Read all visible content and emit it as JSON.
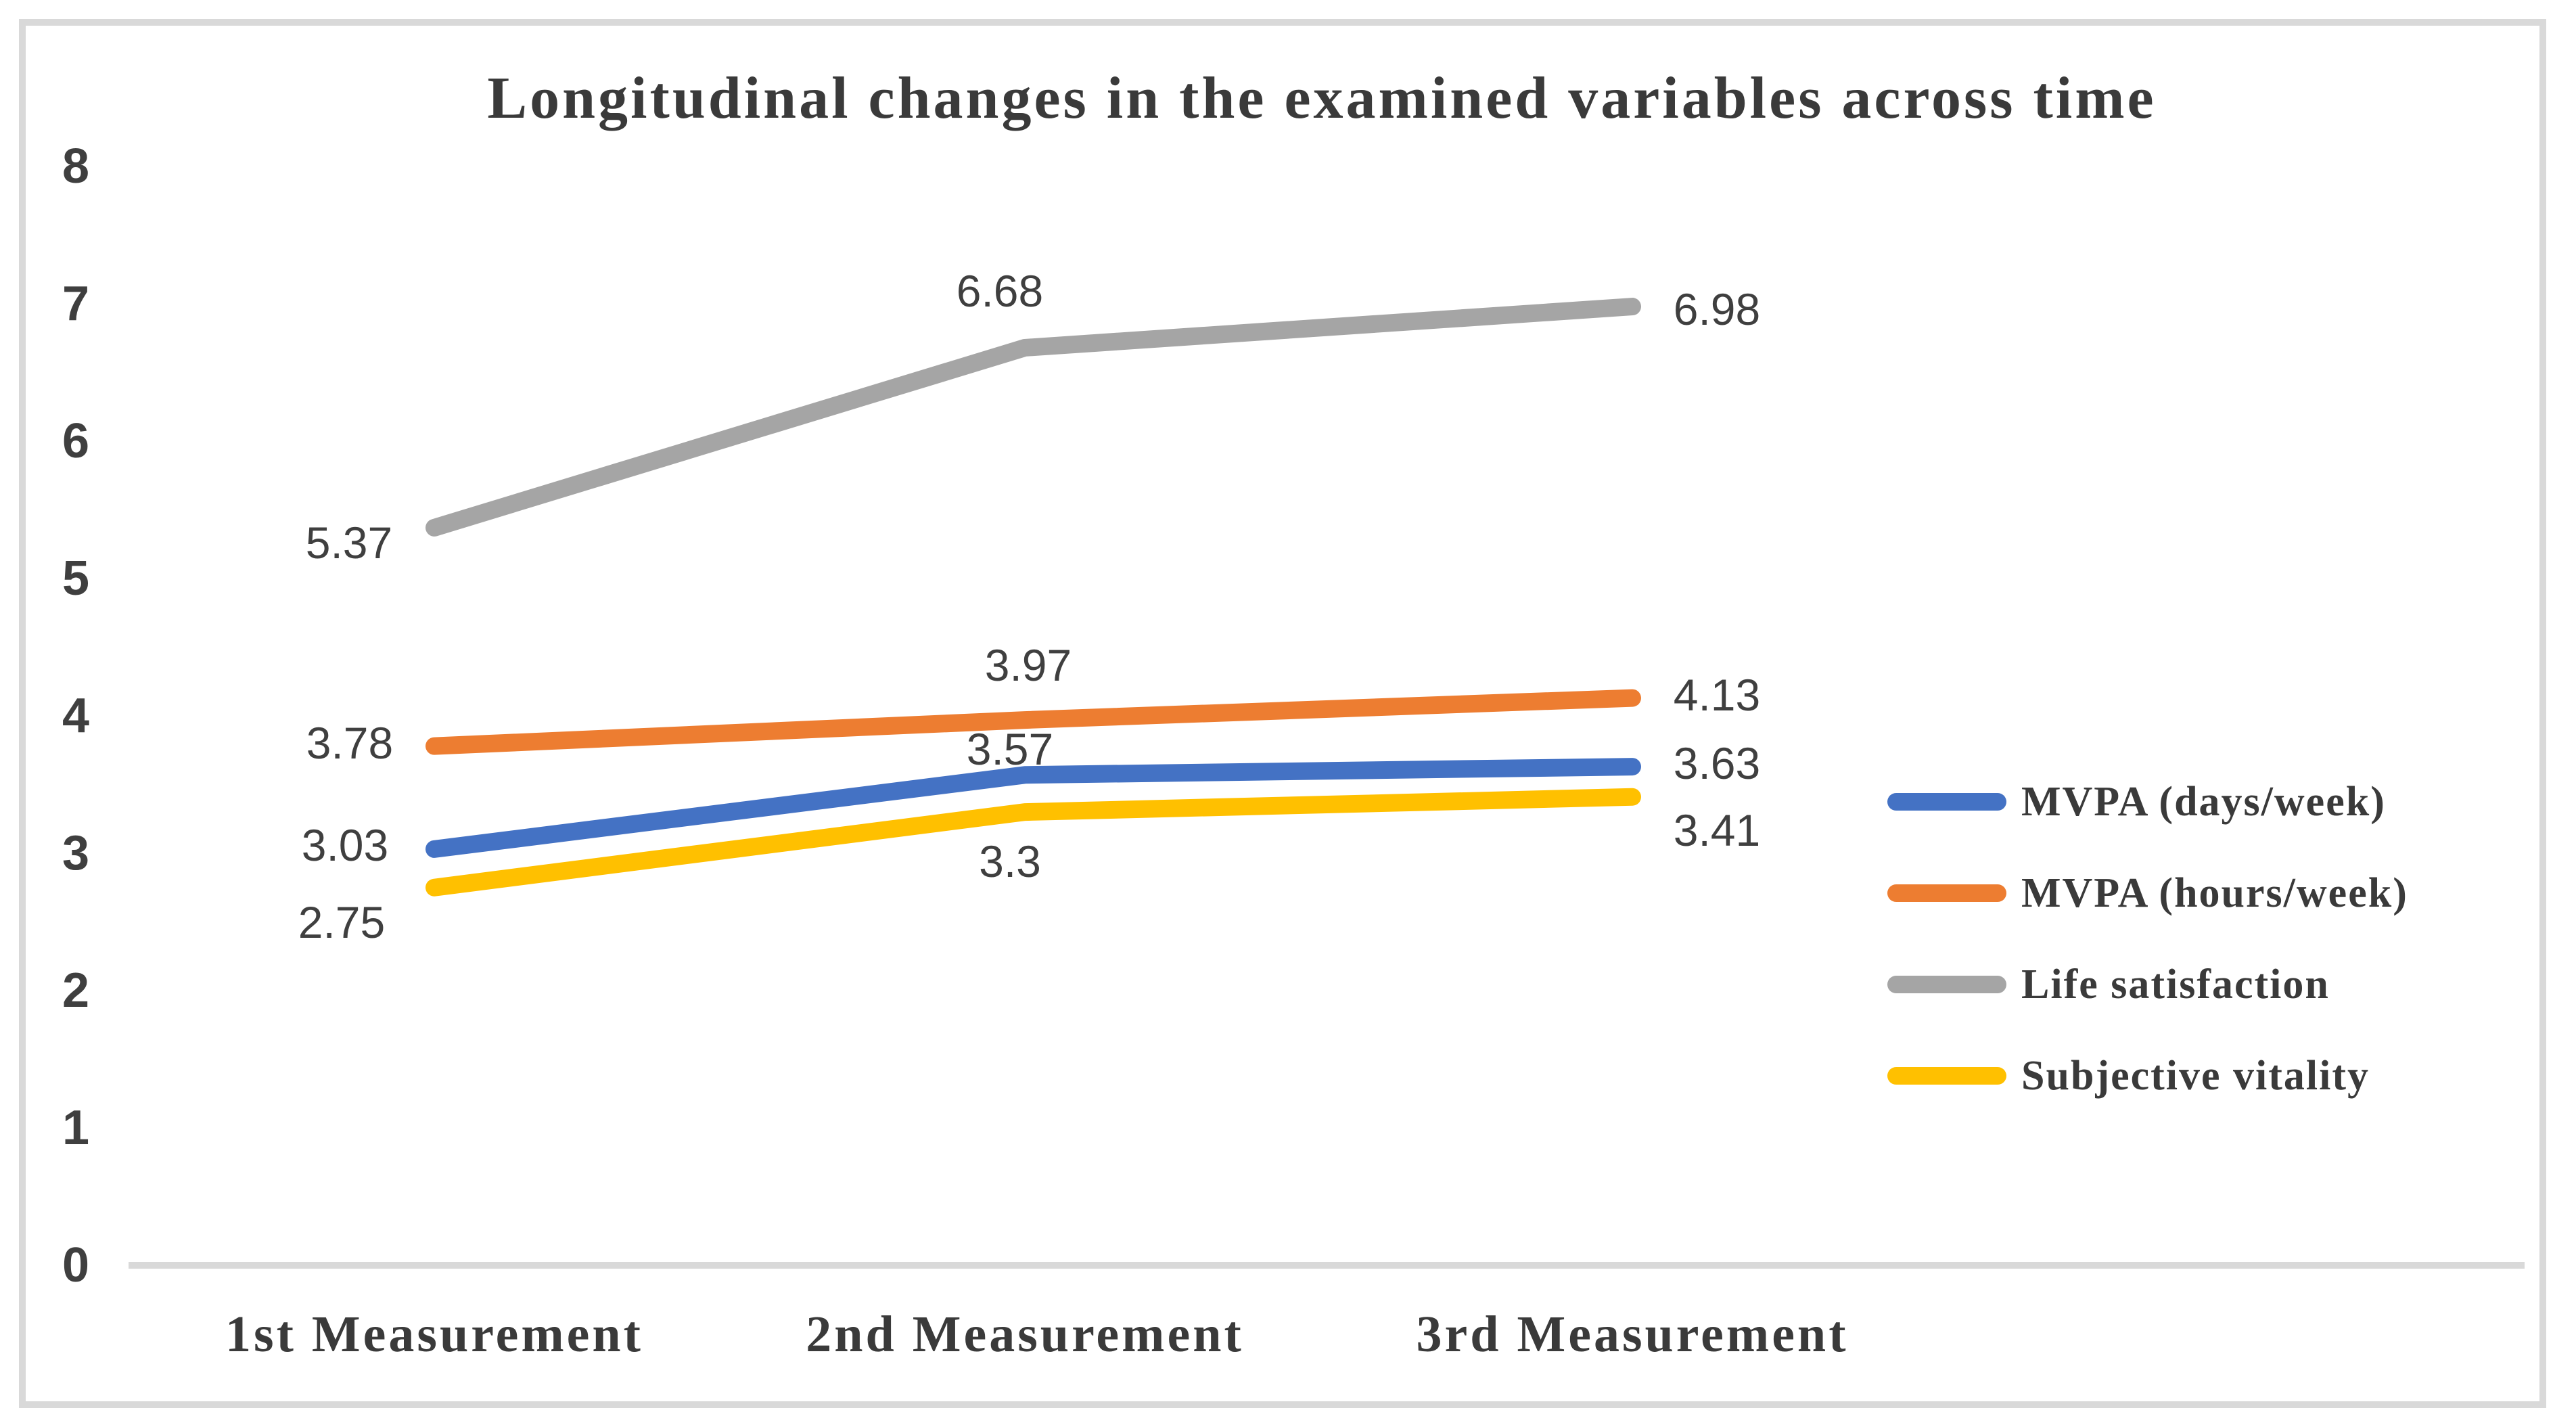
{
  "figure": {
    "title": "Longitudinal changes in the examined variables across time"
  },
  "chart_data": {
    "type": "line",
    "title": "Longitudinal changes in the examined variables across time",
    "categories": [
      "1st Measurement",
      "2nd Measurement",
      "3rd Measurement"
    ],
    "series": [
      {
        "name": "MVPA (days/week)",
        "color": "#4472C4",
        "values": [
          3.03,
          3.57,
          3.63
        ],
        "labels": [
          "3.03",
          "3.57",
          "3.63"
        ]
      },
      {
        "name": "MVPA (hours/week)",
        "color": "#ED7D31",
        "values": [
          3.78,
          3.97,
          4.13
        ],
        "labels": [
          "3.78",
          "3.97",
          "4.13"
        ]
      },
      {
        "name": "Life satisfaction",
        "color": "#A5A5A5",
        "values": [
          5.37,
          6.68,
          6.98
        ],
        "labels": [
          "5.37",
          "6.68",
          "6.98"
        ]
      },
      {
        "name": "Subjective vitality",
        "color": "#FFC000",
        "values": [
          2.75,
          3.3,
          3.41
        ],
        "labels": [
          "2.75",
          "3.3",
          "3.41"
        ]
      }
    ],
    "xlabel": "",
    "ylabel": "",
    "y_axis": {
      "min": 0,
      "max": 8,
      "step": 1,
      "ticks": [
        "0",
        "1",
        "2",
        "3",
        "4",
        "5",
        "6",
        "7",
        "8"
      ]
    },
    "legend_position": "right",
    "legend_entries": [
      "MVPA (days/week)",
      "MVPA (hours/week)",
      "Life satisfaction",
      "Subjective vitality"
    ],
    "grid": "off",
    "data_labels_shown": true
  },
  "colors": {
    "axis_line": "#D9D9D9",
    "frame_border": "#D9D9D9",
    "text": "#3F3F3F"
  }
}
